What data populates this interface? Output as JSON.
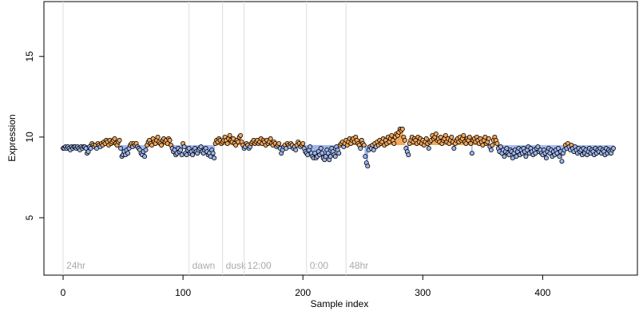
{
  "chart_data": {
    "type": "scatter-deviation",
    "x_label": "Sample index",
    "y_label": "Expression",
    "xlim": [
      -16,
      479
    ],
    "ylim": [
      1.44,
      18.4
    ],
    "xticks": [
      0,
      100,
      200,
      300,
      400
    ],
    "yticks": [
      5,
      10,
      15
    ],
    "baseline": 9.5,
    "color_above": "#f2a65a",
    "color_below": "#9db4ee",
    "markers": [
      {
        "x": 0,
        "label": "24hr"
      },
      {
        "x": 105,
        "label": "dawn"
      },
      {
        "x": 133,
        "label": "dusk"
      },
      {
        "x": 151,
        "label": "12:00"
      },
      {
        "x": 203,
        "label": "0:00"
      },
      {
        "x": 236,
        "label": "48hr"
      }
    ],
    "values": [
      9.3,
      9.3,
      9.4,
      9.3,
      9.4,
      9.3,
      9.2,
      9.4,
      9.3,
      9.4,
      9.4,
      9.3,
      9.4,
      9.3,
      9.2,
      9.4,
      9.3,
      9.4,
      9.4,
      9.3,
      9.0,
      9.1,
      9.4,
      9.3,
      9.6,
      9.5,
      9.4,
      9.5,
      9.3,
      9.6,
      9.5,
      9.4,
      9.6,
      9.5,
      9.7,
      9.6,
      9.8,
      9.7,
      9.5,
      9.8,
      9.6,
      9.7,
      9.8,
      9.9,
      9.6,
      9.5,
      9.7,
      9.8,
      9.3,
      8.8,
      8.9,
      9.1,
      8.9,
      9.2,
      9.0,
      9.3,
      9.5,
      9.6,
      9.4,
      9.6,
      9.5,
      9.6,
      9.4,
      9.3,
      9.2,
      9.0,
      8.9,
      9.1,
      8.8,
      9.2,
      9.5,
      9.7,
      9.8,
      9.6,
      9.5,
      9.9,
      9.7,
      9.6,
      9.8,
      10.0,
      9.7,
      9.6,
      9.5,
      9.8,
      9.9,
      9.7,
      9.8,
      9.6,
      9.9,
      9.8,
      9.5,
      9.3,
      9.1,
      9.2,
      8.9,
      9.0,
      9.3,
      9.1,
      9.2,
      8.9,
      9.6,
      9.4,
      9.0,
      8.9,
      9.2,
      9.3,
      9.0,
      9.1,
      8.9,
      9.2,
      9.3,
      9.1,
      9.0,
      9.2,
      9.3,
      9.4,
      9.1,
      9.0,
      9.2,
      9.3,
      9.1,
      8.9,
      9.0,
      8.8,
      9.2,
      9.0,
      8.7,
      9.6,
      9.8,
      9.7,
      9.9,
      9.8,
      9.6,
      9.7,
      9.8,
      10.0,
      9.8,
      9.6,
      9.9,
      10.1,
      9.8,
      9.7,
      9.9,
      9.6,
      9.5,
      9.8,
      9.7,
      10.0,
      10.1,
      9.7,
      9.5,
      9.3,
      9.4,
      9.6,
      9.5,
      9.3,
      9.4,
      9.6,
      9.7,
      9.8,
      9.6,
      9.7,
      9.8,
      9.6,
      9.7,
      9.9,
      9.6,
      9.8,
      9.7,
      9.5,
      9.8,
      9.6,
      9.7,
      9.9,
      9.6,
      9.5,
      9.7,
      9.6,
      9.4,
      9.5,
      9.6,
      9.3,
      9.0,
      9.2,
      9.4,
      9.5,
      9.3,
      9.6,
      9.5,
      9.4,
      9.6,
      9.5,
      9.3,
      9.4,
      9.2,
      9.5,
      9.7,
      9.6,
      9.4,
      9.5,
      9.6,
      9.3,
      9.1,
      9.0,
      8.9,
      9.2,
      9.4,
      9.0,
      8.8,
      8.7,
      9.0,
      8.7,
      8.8,
      9.1,
      8.9,
      9.3,
      9.0,
      8.7,
      8.6,
      8.8,
      9.2,
      9.0,
      8.6,
      8.8,
      9.3,
      9.1,
      8.9,
      8.8,
      9.4,
      9.2,
      9.0,
      9.5,
      9.6,
      9.7,
      9.4,
      9.6,
      9.8,
      9.5,
      9.7,
      9.9,
      9.6,
      9.8,
      9.9,
      9.7,
      10.0,
      9.8,
      9.6,
      9.5,
      9.3,
      9.8,
      9.6,
      9.5,
      8.8,
      8.4,
      8.2,
      9.2,
      9.4,
      9.3,
      9.5,
      9.2,
      9.6,
      9.4,
      9.7,
      9.5,
      9.8,
      9.6,
      9.7,
      9.9,
      9.5,
      9.8,
      9.6,
      10.0,
      9.7,
      9.9,
      10.1,
      9.8,
      9.6,
      10.0,
      10.2,
      10.1,
      10.3,
      10.5,
      10.4,
      10.5,
      10.0,
      9.8,
      9.3,
      9.1,
      8.9,
      9.6,
      9.8,
      10.0,
      9.7,
      9.9,
      9.8,
      9.6,
      10.0,
      9.7,
      9.9,
      9.6,
      9.8,
      9.5,
      9.7,
      9.9,
      9.6,
      9.3,
      9.7,
      9.8,
      10.1,
      9.9,
      10.0,
      10.2,
      9.8,
      9.9,
      9.7,
      10.0,
      9.6,
      9.8,
      9.9,
      10.1,
      9.7,
      9.9,
      9.6,
      9.8,
      10.0,
      9.7,
      9.3,
      9.6,
      9.8,
      9.9,
      9.7,
      10.0,
      9.8,
      9.9,
      10.1,
      9.7,
      9.6,
      9.9,
      9.8,
      10.0,
      9.6,
      9.0,
      9.8,
      9.9,
      9.7,
      10.0,
      9.8,
      9.6,
      9.9,
      9.7,
      9.5,
      9.8,
      10.0,
      9.6,
      9.7,
      9.9,
      9.4,
      9.2,
      9.5,
      9.8,
      10.0,
      9.8,
      9.6,
      9.3,
      9.1,
      9.4,
      9.0,
      9.2,
      8.8,
      9.1,
      9.3,
      9.0,
      8.9,
      9.2,
      9.1,
      8.7,
      9.0,
      9.2,
      8.8,
      9.1,
      9.3,
      8.9,
      9.2,
      9.0,
      9.3,
      9.1,
      8.8,
      9.2,
      9.4,
      9.0,
      9.3,
      9.1,
      8.9,
      9.2,
      9.0,
      9.3,
      9.4,
      9.1,
      9.2,
      9.0,
      8.9,
      9.2,
      9.0,
      8.7,
      9.1,
      9.3,
      9.0,
      9.2,
      8.8,
      9.1,
      8.9,
      9.2,
      9.0,
      9.3,
      8.8,
      9.1,
      8.5,
      9.0,
      9.2,
      9.5,
      9.3,
      9.6,
      9.4,
      9.2,
      9.5,
      9.3,
      9.1,
      9.4,
      9.2,
      9.0,
      9.3,
      9.1,
      9.2,
      8.9,
      9.3,
      9.0,
      9.2,
      8.9,
      9.1,
      9.3,
      9.0,
      9.2,
      9.1,
      8.9,
      9.3,
      9.0,
      9.2,
      9.1,
      9.3,
      9.0,
      9.2,
      9.1,
      8.9,
      9.3,
      9.0,
      9.2,
      9.1,
      9.0,
      9.2,
      9.3
    ]
  }
}
